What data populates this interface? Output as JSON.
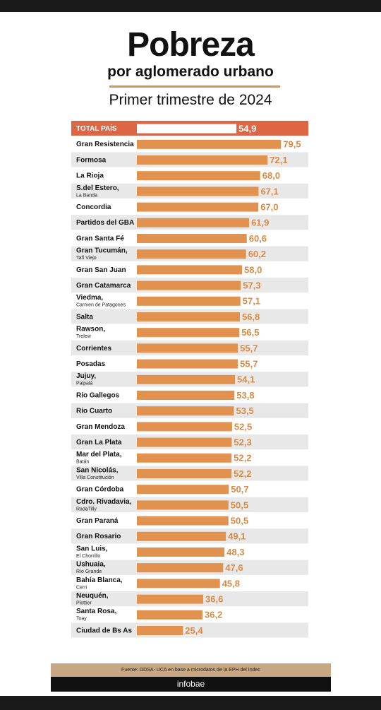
{
  "header": {
    "title": "Pobreza",
    "subtitle": "por aglomerado urbano",
    "period": "Primer trimestre de 2024"
  },
  "footer": {
    "source": "Fuente: ODSA- UCA en base a microdatos de la EPH del Indec",
    "brand": "infobae"
  },
  "colors": {
    "bar": "#e0924e",
    "total_row": "#dd6645",
    "total_bar": "#ffffff",
    "stripe": "#e8e8e8",
    "label_total": "#ffffff",
    "value_text": "#d98a45"
  },
  "chart_data": {
    "type": "bar",
    "orientation": "horizontal",
    "title": "Pobreza",
    "subtitle": "por aglomerado urbano",
    "grid": false,
    "categories": [
      {
        "name": "TOTAL PAÍS",
        "sub": ""
      },
      {
        "name": "Gran Resistencia",
        "sub": ""
      },
      {
        "name": "Formosa",
        "sub": ""
      },
      {
        "name": "La Rioja",
        "sub": ""
      },
      {
        "name": "S.del Estero,",
        "sub": "La Banda"
      },
      {
        "name": "Concordia",
        "sub": ""
      },
      {
        "name": "Partidos del GBA",
        "sub": ""
      },
      {
        "name": "Gran Santa Fé",
        "sub": ""
      },
      {
        "name": "Gran Tucumán,",
        "sub": "Tafí Viejo"
      },
      {
        "name": "Gran San Juan",
        "sub": ""
      },
      {
        "name": "Gran Catamarca",
        "sub": ""
      },
      {
        "name": "Viedma,",
        "sub": "Carmen de Patagones"
      },
      {
        "name": "Salta",
        "sub": ""
      },
      {
        "name": "Rawson,",
        "sub": "Trelew"
      },
      {
        "name": "Corrientes",
        "sub": ""
      },
      {
        "name": "Posadas",
        "sub": ""
      },
      {
        "name": "Jujuy,",
        "sub": "Palpalá"
      },
      {
        "name": "Río Gallegos",
        "sub": ""
      },
      {
        "name": "Río Cuarto",
        "sub": ""
      },
      {
        "name": "Gran Mendoza",
        "sub": ""
      },
      {
        "name": "Gran La Plata",
        "sub": ""
      },
      {
        "name": "Mar del Plata,",
        "sub": "Batán"
      },
      {
        "name": "San Nicolás,",
        "sub": "Villa Constitución"
      },
      {
        "name": "Gran Córdoba",
        "sub": ""
      },
      {
        "name": "Cdro. Rivadavia,",
        "sub": "RadaTilly"
      },
      {
        "name": "Gran Paraná",
        "sub": ""
      },
      {
        "name": "Gran Rosario",
        "sub": ""
      },
      {
        "name": "San Luis,",
        "sub": "El Chorrillo"
      },
      {
        "name": "Ushuaia,",
        "sub": "Río Grande"
      },
      {
        "name": "Bahía Blanca,",
        "sub": "Cerri"
      },
      {
        "name": "Neuquén,",
        "sub": "Plottier"
      },
      {
        "name": "Santa Rosa,",
        "sub": "Toay"
      },
      {
        "name": "Ciudad de Bs As",
        "sub": ""
      }
    ],
    "values": [
      54.9,
      79.5,
      72.1,
      68.0,
      67.1,
      67.0,
      61.9,
      60.6,
      60.2,
      58.0,
      57.3,
      57.1,
      56.8,
      56.5,
      55.7,
      55.7,
      54.1,
      53.8,
      53.5,
      52.5,
      52.3,
      52.2,
      52.2,
      50.7,
      50.5,
      50.5,
      49.1,
      48.3,
      47.6,
      45.8,
      36.6,
      36.2,
      25.4
    ],
    "value_labels": [
      "54,9",
      "79,5",
      "72,1",
      "68,0",
      "67,1",
      "67,0",
      "61,9",
      "60,6",
      "60,2",
      "58,0",
      "57,3",
      "57,1",
      "56,8",
      "56,5",
      "55,7",
      "55,7",
      "54,1",
      "53,8",
      "53,5",
      "52,5",
      "52,3",
      "52,2",
      "52,2",
      "50,7",
      "50,5",
      "50,5",
      "49,1",
      "48,3",
      "47,6",
      "45,8",
      "36,6",
      "36,2",
      "25,4"
    ],
    "xlim": [
      0,
      80
    ]
  }
}
